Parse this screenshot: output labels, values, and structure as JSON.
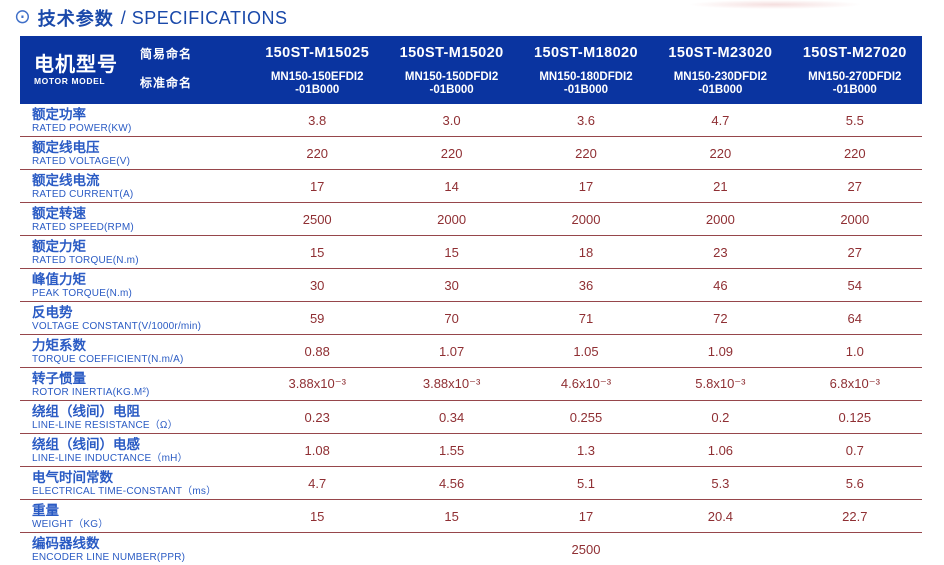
{
  "page": {
    "title_icon_glyph": "⊙",
    "title_zh": "技术参数",
    "title_rest": "/ SPECIFICATIONS"
  },
  "colors": {
    "header_bg": "#0a34a0",
    "label_blue": "#2a5bc4",
    "value_maroon": "#8f2f33",
    "divider": "#96464b",
    "title_blue": "#1a49aa",
    "icon_blue": "#3f6fc8"
  },
  "table": {
    "header": {
      "row_title_zh": "电机型号",
      "row_title_en": "MOTOR MODEL",
      "simple_name_label": "简易命名",
      "standard_name_label": "标准命名",
      "models": [
        {
          "simple": "150ST-M15025",
          "standard_line1": "MN150-150EFDI2",
          "standard_line2": "-01B000"
        },
        {
          "simple": "150ST-M15020",
          "standard_line1": "MN150-150DFDI2",
          "standard_line2": "-01B000"
        },
        {
          "simple": "150ST-M18020",
          "standard_line1": "MN150-180DFDI2",
          "standard_line2": "-01B000"
        },
        {
          "simple": "150ST-M23020",
          "standard_line1": "MN150-230DFDI2",
          "standard_line2": "-01B000"
        },
        {
          "simple": "150ST-M27020",
          "standard_line1": "MN150-270DFDI2",
          "standard_line2": "-01B000"
        }
      ]
    },
    "rows": [
      {
        "zh": "额定功率",
        "en": "RATED POWER(KW)",
        "values": [
          "3.8",
          "3.0",
          "3.6",
          "4.7",
          "5.5"
        ]
      },
      {
        "zh": "额定线电压",
        "en": "RATED VOLTAGE(V)",
        "values": [
          "220",
          "220",
          "220",
          "220",
          "220"
        ]
      },
      {
        "zh": "额定线电流",
        "en": "RATED CURRENT(A)",
        "values": [
          "17",
          "14",
          "17",
          "21",
          "27"
        ]
      },
      {
        "zh": "额定转速",
        "en": "RATED SPEED(RPM)",
        "values": [
          "2500",
          "2000",
          "2000",
          "2000",
          "2000"
        ]
      },
      {
        "zh": "额定力矩",
        "en": "RATED TORQUE(N.m)",
        "values": [
          "15",
          "15",
          "18",
          "23",
          "27"
        ]
      },
      {
        "zh": "峰值力矩",
        "en": "PEAK TORQUE(N.m)",
        "values": [
          "30",
          "30",
          "36",
          "46",
          "54"
        ]
      },
      {
        "zh": "反电势",
        "en": "VOLTAGE CONSTANT(V/1000r/min)",
        "values": [
          "59",
          "70",
          "71",
          "72",
          "64"
        ]
      },
      {
        "zh": "力矩系数",
        "en": "TORQUE COEFFICIENT(N.m/A)",
        "values": [
          "0.88",
          "1.07",
          "1.05",
          "1.09",
          "1.0"
        ]
      },
      {
        "zh": "转子惯量",
        "en": "ROTOR INERTIA(KG.M²)",
        "values": [
          "3.88x10⁻³",
          "3.88x10⁻³",
          "4.6x10⁻³",
          "5.8x10⁻³",
          "6.8x10⁻³"
        ]
      },
      {
        "zh": "绕组（线间）电阻",
        "en": "LINE-LINE RESISTANCE（Ω）",
        "values": [
          "0.23",
          "0.34",
          "0.255",
          "0.2",
          "0.125"
        ]
      },
      {
        "zh": "绕组（线间）电感",
        "en": "LINE-LINE INDUCTANCE（mH）",
        "values": [
          "1.08",
          "1.55",
          "1.3",
          "1.06",
          "0.7"
        ]
      },
      {
        "zh": "电气时间常数",
        "en": "ELECTRICAL TIME-CONSTANT（ms）",
        "values": [
          "4.7",
          "4.56",
          "5.1",
          "5.3",
          "5.6"
        ]
      },
      {
        "zh": "重量",
        "en": "WEIGHT（KG）",
        "values": [
          "15",
          "15",
          "17",
          "20.4",
          "22.7"
        ]
      },
      {
        "zh": "编码器线数",
        "en": "ENCODER LINE NUMBER(PPR)",
        "values": [
          "",
          "",
          "2500",
          "",
          ""
        ]
      }
    ]
  }
}
